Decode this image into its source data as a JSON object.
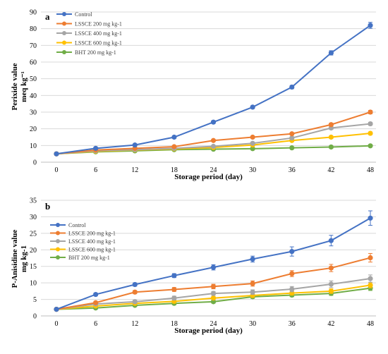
{
  "chart_data": [
    {
      "type": "line",
      "panel_label": "a",
      "xlabel": "Storage period (day)",
      "ylabel_lines": [
        "Perixide value",
        "meq kg⁻¹"
      ],
      "x": [
        0,
        6,
        12,
        18,
        24,
        30,
        36,
        42,
        48
      ],
      "x_ticks": [
        "0",
        "6",
        "12",
        "18",
        "24",
        "30",
        "36",
        "42",
        "48"
      ],
      "ylim": [
        0,
        90
      ],
      "y_ticks": [
        "0",
        "10",
        "20",
        "30",
        "40",
        "50",
        "60",
        "70",
        "80",
        "90"
      ],
      "grid": true,
      "legend_position": "top-left",
      "series": [
        {
          "name": "Control",
          "color": "#4472c4",
          "values": [
            5,
            8.3,
            10.3,
            15,
            24,
            33,
            45,
            65.5,
            82
          ],
          "errors": [
            0.6,
            0.5,
            0.6,
            0.7,
            0.8,
            0.8,
            1.0,
            1.3,
            1.8
          ]
        },
        {
          "name": "LSSCE 200  mg kg-1",
          "color": "#ed7d31",
          "values": [
            5,
            7.3,
            8.3,
            9.3,
            13,
            15,
            17,
            22.5,
            30
          ],
          "errors": [
            0.4,
            0.4,
            0.4,
            0.5,
            0.6,
            0.6,
            0.7,
            0.9,
            1.0
          ]
        },
        {
          "name": "LSSCE 400  mg kg-1",
          "color": "#a5a5a5",
          "values": [
            5,
            6.8,
            7.5,
            8.3,
            9.5,
            11.3,
            14.5,
            20.5,
            23
          ],
          "errors": [
            0.4,
            0.4,
            0.4,
            0.4,
            0.5,
            0.6,
            0.7,
            0.9,
            0.9
          ]
        },
        {
          "name": "LSSCE 600  mg kg-1",
          "color": "#ffc000",
          "values": [
            5,
            6.5,
            7.3,
            8,
            8.8,
            10.3,
            13,
            15,
            17.3
          ],
          "errors": [
            0.4,
            0.4,
            0.4,
            0.4,
            0.5,
            0.5,
            0.6,
            0.7,
            0.8
          ]
        },
        {
          "name": "BHT 200  mg kg-1",
          "color": "#70ad47",
          "values": [
            5,
            6.2,
            6.8,
            7.5,
            7.8,
            8.1,
            8.6,
            9.1,
            9.8
          ],
          "errors": [
            0.4,
            0.4,
            0.4,
            0.4,
            0.4,
            0.4,
            0.4,
            0.4,
            0.5
          ]
        }
      ]
    },
    {
      "type": "line",
      "panel_label": "b",
      "xlabel": "Storage period (day)",
      "ylabel_lines": [
        "P-Anisidine value",
        "mg kg-1"
      ],
      "x": [
        0,
        6,
        12,
        18,
        24,
        30,
        36,
        42,
        48
      ],
      "x_ticks": [
        "0",
        "6",
        "12",
        "18",
        "24",
        "30",
        "36",
        "42",
        "48"
      ],
      "ylim": [
        0,
        35
      ],
      "y_ticks": [
        "0",
        "5",
        "10",
        "15",
        "20",
        "25",
        "30",
        "35"
      ],
      "grid": true,
      "legend_position": "top-left",
      "series": [
        {
          "name": "Control",
          "color": "#4472c4",
          "values": [
            2,
            6.5,
            9.5,
            12.2,
            14.7,
            17.2,
            19.5,
            22.8,
            29.6
          ],
          "errors": [
            0.3,
            0.4,
            0.5,
            0.6,
            0.8,
            0.9,
            1.4,
            1.6,
            2.2
          ]
        },
        {
          "name": "LSSCE 200  mg kg-1",
          "color": "#ed7d31",
          "values": [
            2,
            4,
            7.2,
            8,
            8.9,
            9.8,
            12.8,
            14.5,
            17.6
          ],
          "errors": [
            0.3,
            0.4,
            0.5,
            0.6,
            0.7,
            0.8,
            0.9,
            1.1,
            1.3
          ]
        },
        {
          "name": "LSSCE 400  mg kg-1",
          "color": "#a5a5a5",
          "values": [
            2,
            3.6,
            4.3,
            5.4,
            6.8,
            7.2,
            8.1,
            9.6,
            11.3
          ],
          "errors": [
            0.3,
            0.4,
            0.5,
            0.6,
            0.6,
            0.7,
            0.8,
            1.0,
            1.1
          ]
        },
        {
          "name": "LSSCE 600  mg kg-1",
          "color": "#ffc000",
          "values": [
            2,
            3,
            3.8,
            4.4,
            5.4,
            6.2,
            6.9,
            7.5,
            9.3
          ],
          "errors": [
            0.3,
            0.3,
            0.4,
            0.5,
            0.5,
            0.6,
            0.6,
            0.7,
            0.8
          ]
        },
        {
          "name": "BHT 200  mg kg-1",
          "color": "#70ad47",
          "values": [
            2,
            2.4,
            3.2,
            3.8,
            4.3,
            5.8,
            6.3,
            6.8,
            8.4
          ],
          "errors": [
            0.3,
            0.3,
            0.3,
            0.4,
            0.4,
            0.5,
            0.5,
            0.6,
            0.7
          ]
        }
      ]
    }
  ]
}
